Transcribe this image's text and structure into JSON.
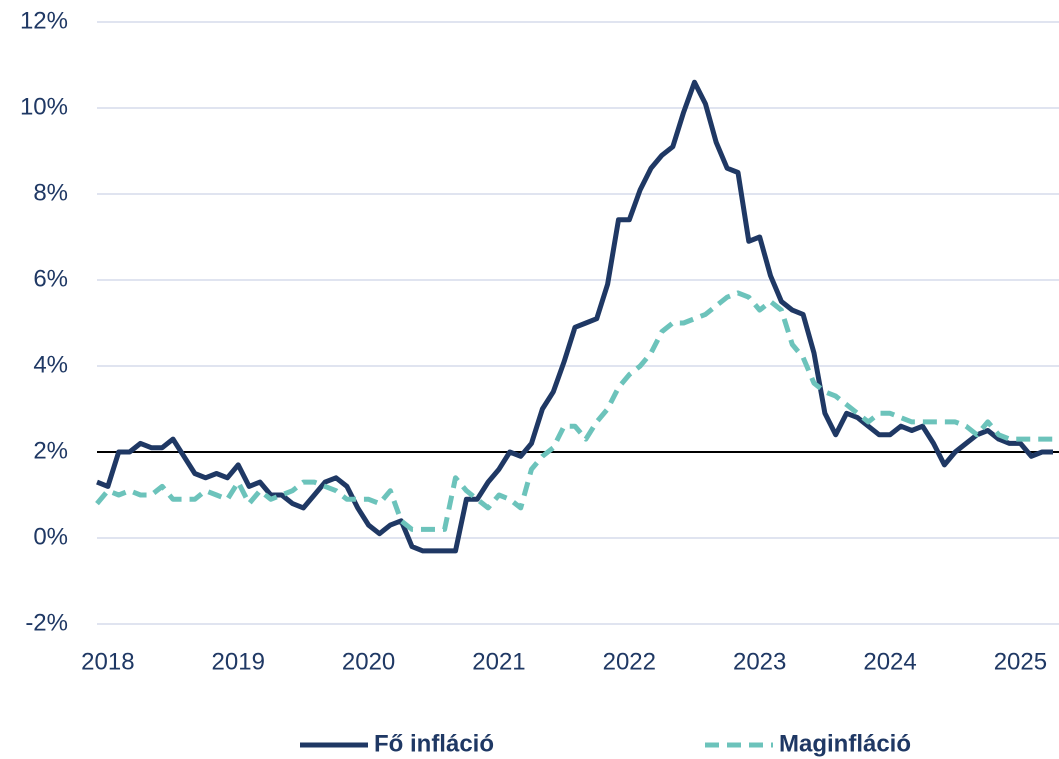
{
  "chart_data": {
    "type": "line",
    "categories": [
      null,
      "2018",
      null,
      null,
      null,
      null,
      null,
      null,
      null,
      null,
      null,
      null,
      null,
      "2019",
      null,
      null,
      null,
      null,
      null,
      null,
      null,
      null,
      null,
      null,
      null,
      "2020",
      null,
      null,
      null,
      null,
      null,
      null,
      null,
      null,
      null,
      null,
      null,
      "2021",
      null,
      null,
      null,
      null,
      null,
      null,
      null,
      null,
      null,
      null,
      null,
      "2022",
      null,
      null,
      null,
      null,
      null,
      null,
      null,
      null,
      null,
      null,
      null,
      "2023",
      null,
      null,
      null,
      null,
      null,
      null,
      null,
      null,
      null,
      null,
      null,
      "2024",
      null,
      null,
      null,
      null,
      null,
      null,
      null,
      null,
      null,
      null,
      null,
      "2025",
      null,
      null,
      null
    ],
    "series": [
      {
        "name": "Fő infláció",
        "color": "#1f3864",
        "style": "solid",
        "values": [
          1.3,
          1.2,
          2.0,
          2.0,
          2.2,
          2.1,
          2.1,
          2.3,
          1.9,
          1.5,
          1.4,
          1.5,
          1.4,
          1.7,
          1.2,
          1.3,
          1.0,
          1.0,
          0.8,
          0.7,
          1.0,
          1.3,
          1.4,
          1.2,
          0.7,
          0.3,
          0.1,
          0.3,
          0.4,
          -0.2,
          -0.3,
          -0.3,
          -0.3,
          -0.3,
          0.9,
          0.9,
          1.3,
          1.6,
          2.0,
          1.9,
          2.2,
          3.0,
          3.4,
          4.1,
          4.9,
          5.0,
          5.1,
          5.9,
          7.4,
          7.4,
          8.1,
          8.6,
          8.9,
          9.1,
          9.9,
          10.6,
          10.1,
          9.2,
          8.6,
          8.5,
          6.9,
          7.0,
          6.1,
          5.5,
          5.3,
          5.2,
          4.3,
          2.9,
          2.4,
          2.9,
          2.8,
          2.6,
          2.4,
          2.4,
          2.6,
          2.5,
          2.6,
          2.2,
          1.7,
          2.0,
          2.2,
          2.4,
          2.5,
          2.3,
          2.2,
          2.2,
          1.9,
          2.0,
          2.0
        ]
      },
      {
        "name": "Maginfláció",
        "color": "#6cc3bb",
        "style": "dashed",
        "values": [
          0.8,
          1.1,
          1.0,
          1.1,
          1.0,
          1.0,
          1.2,
          0.9,
          0.9,
          0.9,
          1.1,
          1.0,
          0.9,
          1.3,
          0.8,
          1.1,
          0.9,
          1.0,
          1.1,
          1.3,
          1.3,
          1.2,
          1.1,
          0.9,
          0.9,
          0.9,
          0.8,
          1.1,
          0.4,
          0.2,
          0.2,
          0.2,
          0.2,
          1.4,
          1.1,
          0.9,
          0.7,
          1.0,
          0.9,
          0.7,
          1.6,
          1.9,
          2.1,
          2.6,
          2.6,
          2.3,
          2.7,
          3.0,
          3.5,
          3.8,
          4.0,
          4.3,
          4.8,
          5.0,
          5.0,
          5.1,
          5.2,
          5.4,
          5.6,
          5.7,
          5.6,
          5.3,
          5.5,
          5.3,
          4.5,
          4.2,
          3.6,
          3.4,
          3.3,
          3.1,
          2.9,
          2.7,
          2.9,
          2.9,
          2.8,
          2.7,
          2.7,
          2.7,
          2.7,
          2.7,
          2.6,
          2.4,
          2.7,
          2.4,
          2.3,
          2.3,
          2.3,
          2.3,
          2.3
        ]
      }
    ],
    "ylim": [
      -2,
      12
    ],
    "yticks": [
      {
        "value": -2,
        "label": "-2%"
      },
      {
        "value": 0,
        "label": "0%"
      },
      {
        "value": 2,
        "label": "2%"
      },
      {
        "value": 4,
        "label": "4%"
      },
      {
        "value": 6,
        "label": "6%"
      },
      {
        "value": 8,
        "label": "8%"
      },
      {
        "value": 10,
        "label": "10%"
      },
      {
        "value": 12,
        "label": "12%"
      }
    ],
    "grid": true,
    "reference_line": 2,
    "legend": "bottom"
  }
}
